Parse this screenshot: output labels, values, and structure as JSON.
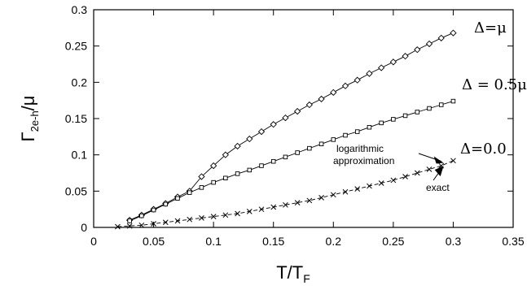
{
  "chart_data": {
    "type": "scatter",
    "xlabel": "T/T",
    "xlabel_sub": "F",
    "ylabel": "Γ",
    "ylabel_sub": "2e-h",
    "ylabel_suffix": "/μ",
    "xlim": [
      0,
      0.35
    ],
    "ylim": [
      0,
      0.3
    ],
    "x_ticks": [
      "0",
      "0.05",
      "0.1",
      "0.15",
      "0.2",
      "0.25",
      "0.3",
      "0.35"
    ],
    "y_ticks": [
      "0",
      "0.05",
      "0.1",
      "0.15",
      "0.2",
      "0.25",
      "0.3"
    ],
    "grid": false,
    "series": [
      {
        "name": "Δ=μ",
        "marker": "diamond",
        "x": [
          0.03,
          0.04,
          0.05,
          0.06,
          0.07,
          0.08,
          0.09,
          0.1,
          0.11,
          0.12,
          0.13,
          0.14,
          0.15,
          0.16,
          0.17,
          0.18,
          0.19,
          0.2,
          0.21,
          0.22,
          0.23,
          0.24,
          0.25,
          0.26,
          0.27,
          0.28,
          0.29,
          0.3
        ],
        "y": [
          0.01,
          0.017,
          0.025,
          0.033,
          0.042,
          0.05,
          0.07,
          0.085,
          0.1,
          0.112,
          0.122,
          0.132,
          0.142,
          0.151,
          0.16,
          0.169,
          0.177,
          0.186,
          0.195,
          0.203,
          0.212,
          0.22,
          0.228,
          0.236,
          0.245,
          0.253,
          0.261,
          0.268
        ]
      },
      {
        "name": "Δ = 0.5μ",
        "marker": "square",
        "x": [
          0.03,
          0.04,
          0.05,
          0.06,
          0.07,
          0.08,
          0.09,
          0.1,
          0.11,
          0.12,
          0.13,
          0.14,
          0.15,
          0.16,
          0.17,
          0.18,
          0.19,
          0.2,
          0.21,
          0.22,
          0.23,
          0.24,
          0.25,
          0.26,
          0.27,
          0.28,
          0.29,
          0.3
        ],
        "y": [
          0.009,
          0.016,
          0.024,
          0.032,
          0.04,
          0.048,
          0.055,
          0.062,
          0.068,
          0.074,
          0.079,
          0.085,
          0.091,
          0.097,
          0.103,
          0.109,
          0.115,
          0.121,
          0.127,
          0.132,
          0.138,
          0.144,
          0.149,
          0.154,
          0.159,
          0.164,
          0.169,
          0.174
        ]
      },
      {
        "name": "Δ=0.0",
        "marker": "cross",
        "x": [
          0.02,
          0.03,
          0.04,
          0.05,
          0.06,
          0.07,
          0.08,
          0.09,
          0.1,
          0.11,
          0.12,
          0.13,
          0.14,
          0.15,
          0.16,
          0.17,
          0.18,
          0.19,
          0.2,
          0.21,
          0.22,
          0.23,
          0.24,
          0.25,
          0.26,
          0.27,
          0.28,
          0.29,
          0.3
        ],
        "y": [
          0.001,
          0.002,
          0.003,
          0.005,
          0.007,
          0.009,
          0.011,
          0.013,
          0.015,
          0.017,
          0.019,
          0.022,
          0.025,
          0.028,
          0.031,
          0.034,
          0.037,
          0.041,
          0.045,
          0.049,
          0.053,
          0.057,
          0.061,
          0.065,
          0.07,
          0.075,
          0.08,
          0.085,
          0.092
        ]
      }
    ],
    "annotations": [
      {
        "text": "logarithmic",
        "target": [
          0.292,
          0.089
        ]
      },
      {
        "text": "approximation",
        "target": [
          0.292,
          0.089
        ]
      },
      {
        "text": "exact",
        "target": [
          0.292,
          0.085
        ]
      }
    ]
  }
}
